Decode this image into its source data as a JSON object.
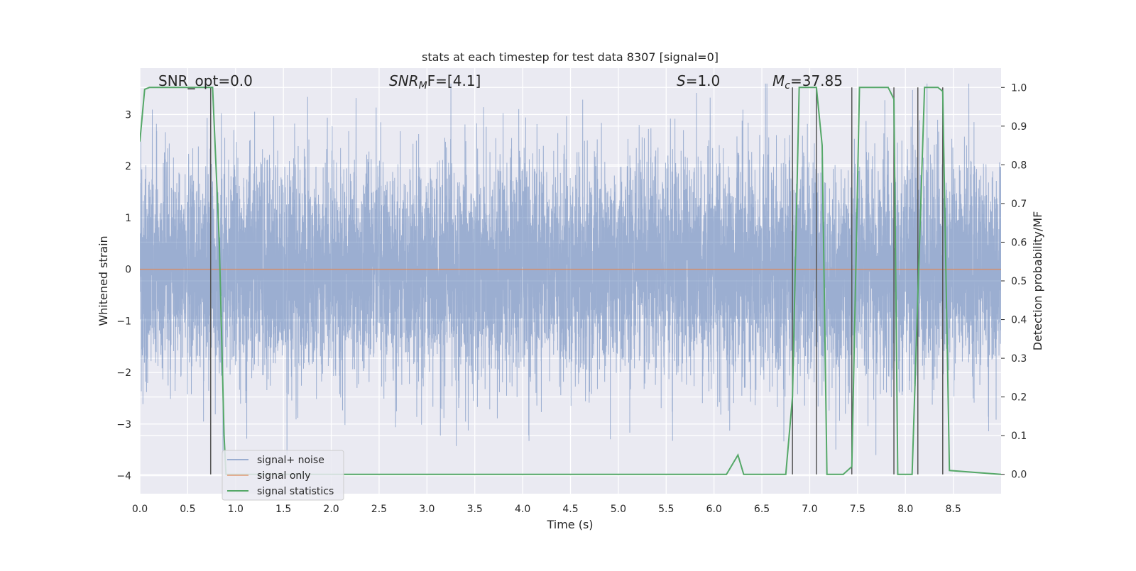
{
  "chart_data": {
    "type": "line",
    "title": "stats at each timestep for test data 8307 [signal=0]",
    "xlabel": "Time (s)",
    "ylabel_left": "Whitened strain",
    "ylabel_right": "Detection probability/MF",
    "xlim": [
      0.0,
      9.0
    ],
    "ylim_left": [
      -4.35,
      3.9
    ],
    "ylim_right": [
      -0.05,
      1.05
    ],
    "xticks": [
      "0.0",
      "0.5",
      "1.0",
      "1.5",
      "2.0",
      "2.5",
      "3.0",
      "3.5",
      "4.0",
      "4.5",
      "5.0",
      "5.5",
      "6.0",
      "6.5",
      "7.0",
      "7.5",
      "8.0",
      "8.5"
    ],
    "yticks_left": [
      "3",
      "2",
      "1",
      "0",
      "−1",
      "−2",
      "−3",
      "−4"
    ],
    "yticks_right": [
      "1.0",
      "0.9",
      "0.8",
      "0.7",
      "0.6",
      "0.5",
      "0.4",
      "0.3",
      "0.2",
      "0.1",
      "0.0"
    ],
    "grid": true,
    "legend_position": "lower-left",
    "annotations": {
      "snr_opt": "SNR_opt=0.0",
      "snr_mf_base": "SNR",
      "snr_mf_sub": "M",
      "snr_mf_rest": "F=[4.1]",
      "s_italic": "S",
      "s_rest": "=1.0",
      "mc_base": "M",
      "mc_sub": "c",
      "mc_rest": "=37.85"
    },
    "colors": {
      "noise": "#4c72b0",
      "signal": "#dd8452",
      "stats": "#55a868",
      "background": "#eaeaf2",
      "vlines": "#555555"
    },
    "series": [
      {
        "name": "signal+ noise",
        "kind": "whitened_noise",
        "x_range": [
          0.0,
          9.0
        ],
        "typical_amplitude": 1.3,
        "spike_max": 3.6,
        "spike_min": -3.6
      },
      {
        "name": "signal only",
        "x": [
          0.0,
          9.0
        ],
        "y": [
          0.0,
          0.0
        ]
      },
      {
        "name": "signal statistics",
        "x": [
          0.0,
          0.05,
          0.1,
          0.74,
          0.76,
          0.83,
          0.88,
          0.9,
          6.13,
          6.25,
          6.31,
          6.75,
          6.82,
          6.89,
          7.07,
          7.13,
          7.18,
          7.35,
          7.44,
          7.52,
          7.82,
          7.88,
          7.92,
          8.07,
          8.2,
          8.34,
          8.39,
          8.46,
          9.0
        ],
        "y": [
          0.86,
          0.995,
          1.0,
          1.0,
          1.0,
          0.6,
          0.1,
          0.0,
          0.0,
          0.05,
          0.0,
          0.0,
          0.2,
          1.0,
          1.0,
          0.85,
          0.0,
          0.0,
          0.02,
          1.0,
          1.0,
          0.97,
          0.0,
          0.0,
          1.0,
          1.0,
          0.99,
          0.01,
          0.0
        ]
      }
    ],
    "vlines": [
      0.74,
      6.82,
      7.07,
      7.44,
      7.88,
      8.13,
      8.39
    ]
  }
}
